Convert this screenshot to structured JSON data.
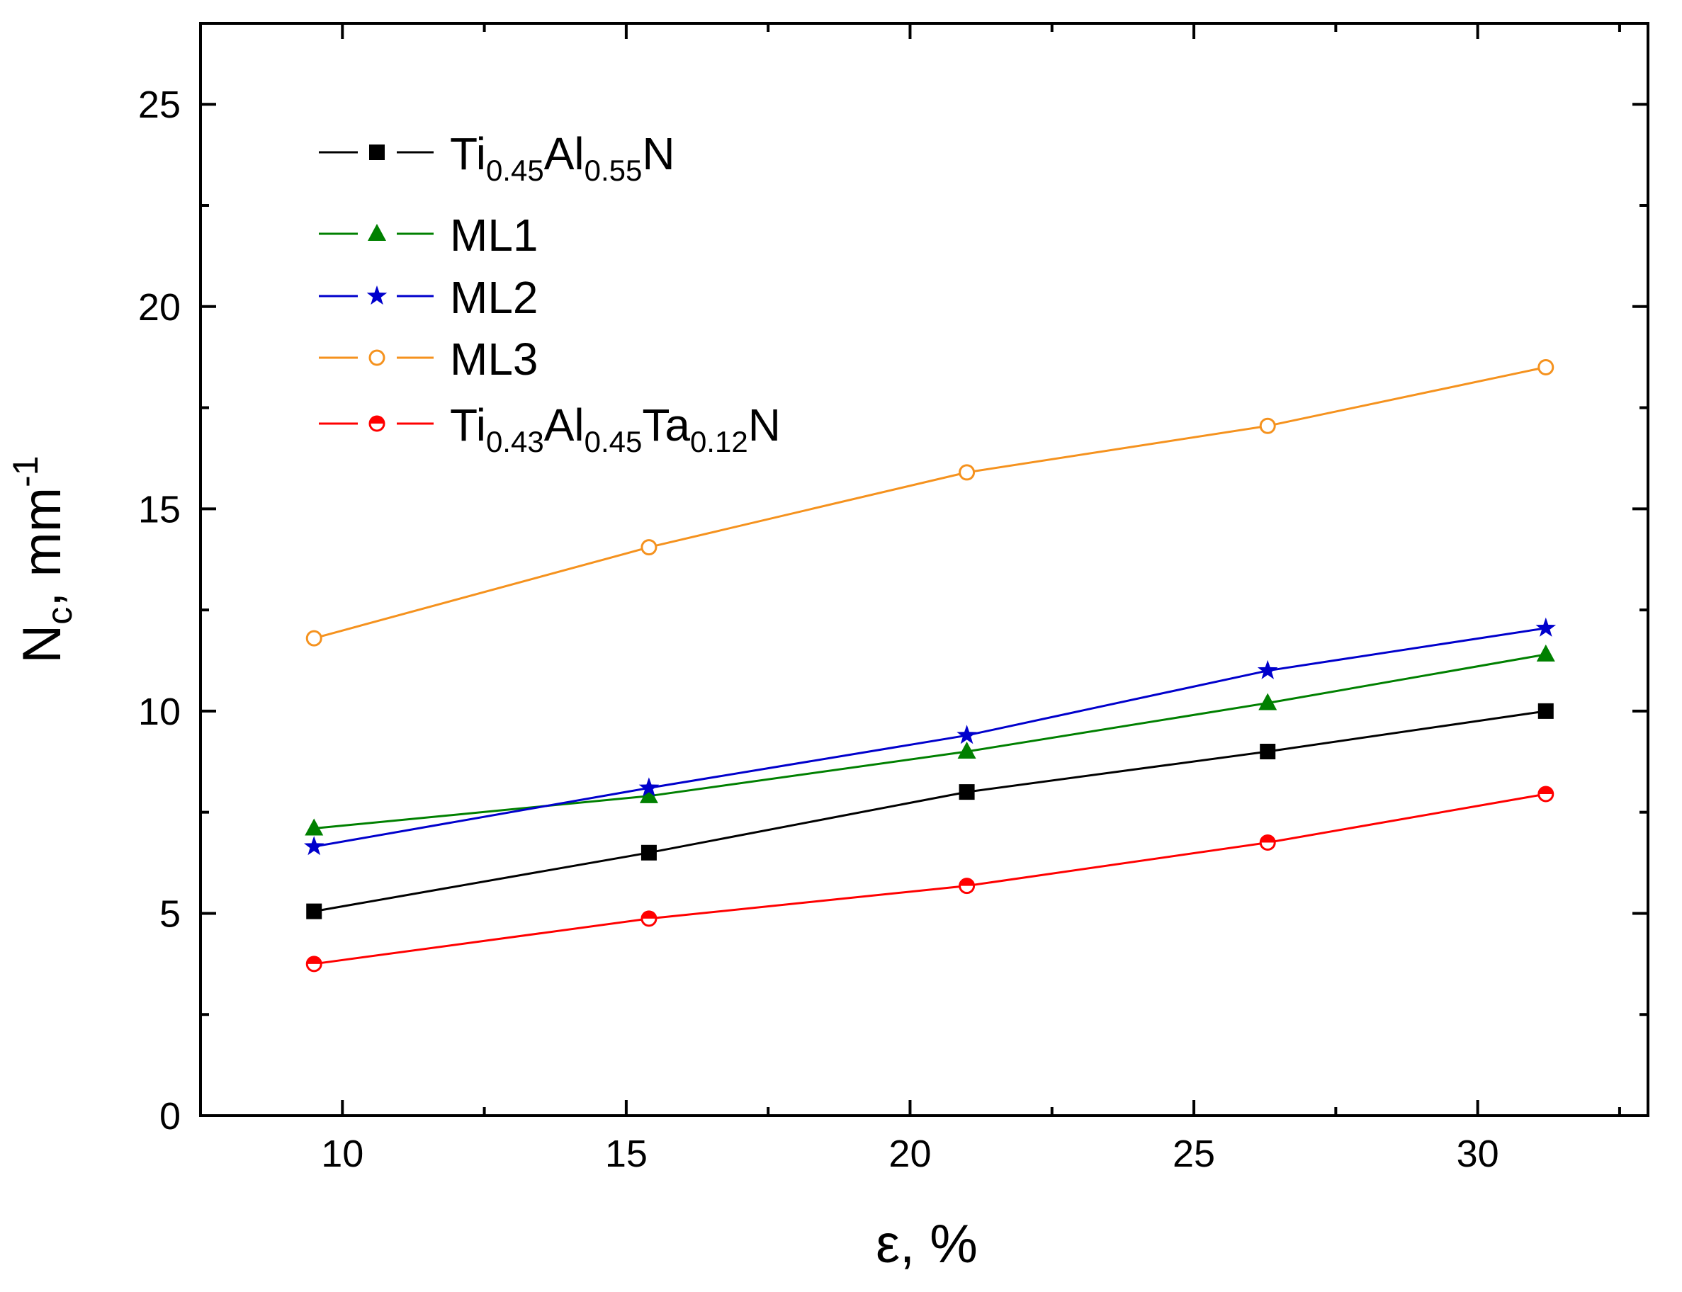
{
  "chart_data": {
    "type": "line",
    "title": "",
    "xlabel": "ε, %",
    "ylabel": "Nc, mm-1",
    "ylabel_parts": {
      "main": "N",
      "sub": "c",
      "rest": ", mm",
      "sup": "-1"
    },
    "xlim": [
      7.5,
      33
    ],
    "ylim": [
      0,
      27
    ],
    "xticks": [
      "10",
      "15",
      "20",
      "25",
      "30"
    ],
    "yticks": [
      "0",
      "5",
      "10",
      "15",
      "20",
      "25"
    ],
    "x": [
      9.5,
      15.4,
      21.0,
      26.3,
      31.2
    ],
    "legend_position": "top-left",
    "series": [
      {
        "name": "Ti0.45Al0.55N",
        "name_parts": [
          [
            "Ti",
            ""
          ],
          [
            "0.45",
            "sub"
          ],
          [
            "Al",
            ""
          ],
          [
            "0.55",
            "sub"
          ],
          [
            "N",
            ""
          ]
        ],
        "color": "#000000",
        "marker": "square-filled",
        "values": [
          5.05,
          6.5,
          8.0,
          9.0,
          10.0
        ]
      },
      {
        "name": "ML1",
        "name_parts": [
          [
            "ML1",
            ""
          ]
        ],
        "color": "#008000",
        "marker": "triangle-filled",
        "values": [
          7.1,
          7.9,
          9.0,
          10.2,
          11.4
        ]
      },
      {
        "name": "ML2",
        "name_parts": [
          [
            "ML2",
            ""
          ]
        ],
        "color": "#0000cc",
        "marker": "star",
        "values": [
          6.65,
          8.1,
          9.4,
          11.0,
          12.05
        ]
      },
      {
        "name": "ML3",
        "name_parts": [
          [
            "ML3",
            ""
          ]
        ],
        "color": "#f5921e",
        "marker": "circle-open",
        "values": [
          11.8,
          14.05,
          15.9,
          17.05,
          18.5
        ]
      },
      {
        "name": "Ti0.43Al0.45Ta0.12N",
        "name_parts": [
          [
            "Ti",
            ""
          ],
          [
            "0.43",
            "sub"
          ],
          [
            "Al",
            ""
          ],
          [
            "0.45",
            "sub"
          ],
          [
            "Ta",
            ""
          ],
          [
            "0.12",
            "sub"
          ],
          [
            "N",
            ""
          ]
        ],
        "color": "#ff0000",
        "marker": "circle-half",
        "values": [
          3.75,
          4.87,
          5.68,
          6.75,
          7.95
        ]
      }
    ]
  }
}
